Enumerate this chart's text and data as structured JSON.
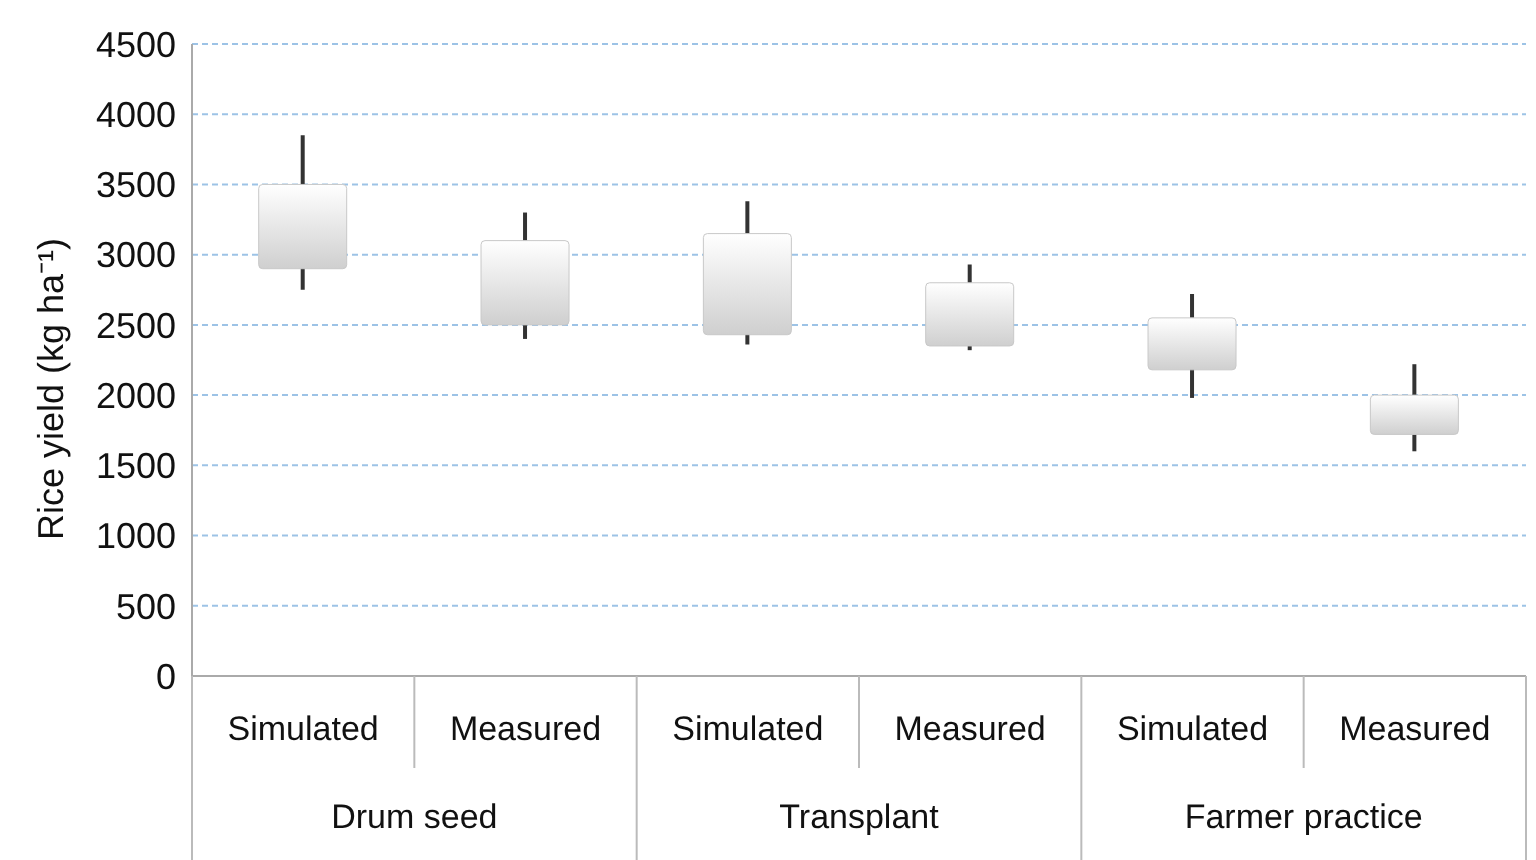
{
  "chart_data": {
    "type": "candlestick",
    "ylabel": "Rice yield (kg ha⁻¹)",
    "categories": [
      "Simulated",
      "Measured",
      "Simulated",
      "Measured",
      "Simulated",
      "Measured"
    ],
    "annotations": [
      "Drum seed",
      "Transplant",
      "Farmer practice"
    ],
    "ohlc": [
      [
        2900,
        3850,
        2750,
        3500
      ],
      [
        2500,
        3300,
        2400,
        3100
      ],
      [
        2430,
        3380,
        2360,
        3150
      ],
      [
        2350,
        2930,
        2320,
        2800
      ],
      [
        2180,
        2720,
        1980,
        2550
      ],
      [
        1720,
        2220,
        1600,
        2000
      ]
    ],
    "color": "#cfcfcf",
    "ylim": [
      0,
      4500
    ],
    "yticks": [
      0,
      500,
      1000,
      1500,
      2000,
      2500,
      3000,
      3500,
      4000,
      4500
    ],
    "grid": "y"
  }
}
